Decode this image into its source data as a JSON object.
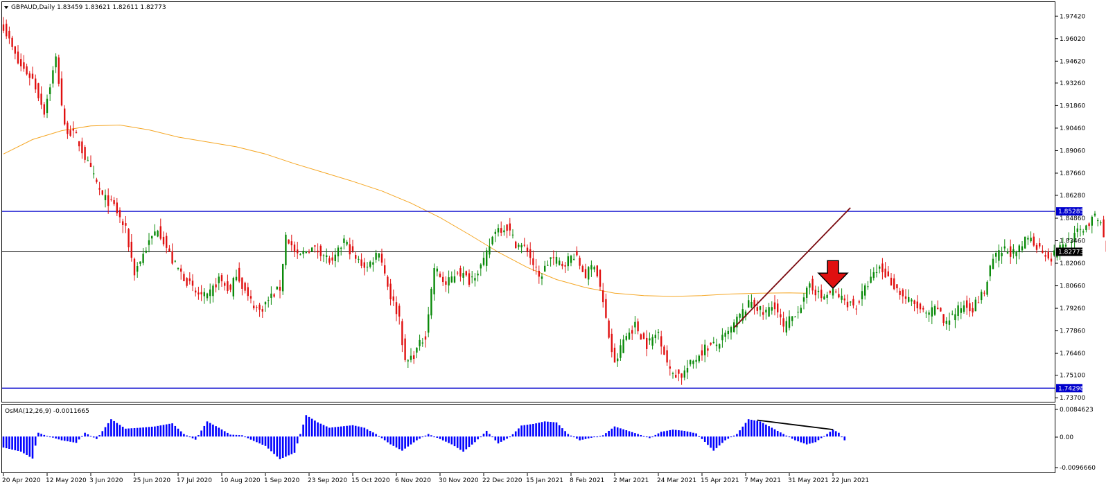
{
  "header": {
    "symbol_line": "GBPAUD,Daily  1.83459 1.83621 1.82611 1.82773"
  },
  "indicator": {
    "label": "OsMA(12,26,9) -0.0011665",
    "ticks": [
      "0.0084623",
      "0.00",
      "-0.0096660"
    ]
  },
  "colors": {
    "bull": "#0a8a0a",
    "bear": "#e01010",
    "ma": "#f5a623",
    "level": "#0000cc",
    "trend": "#7a0a10",
    "arrow": "#e01010",
    "osma": "#0000ff",
    "price_line": "#000000"
  },
  "chart_data": [
    {
      "type": "candlestick",
      "symbol": "GBPAUD",
      "timeframe": "Daily",
      "ohlc_last": {
        "open": 1.83459,
        "high": 1.83621,
        "low": 1.82611,
        "close": 1.82773
      },
      "y_ticks": [
        "1.97420",
        "1.96020",
        "1.94620",
        "1.93260",
        "1.91860",
        "1.90460",
        "1.89060",
        "1.87660",
        "1.86280",
        "1.84860",
        "1.83460",
        "1.82060",
        "1.80660",
        "1.79260",
        "1.77860",
        "1.76460",
        "1.75100",
        "1.73700"
      ],
      "ylim": [
        1.7345,
        1.9825
      ],
      "x_ticks": [
        "20 Apr 2020",
        "12 May 2020",
        "3 Jun 2020",
        "25 Jun 2020",
        "17 Jul 2020",
        "10 Aug 2020",
        "1 Sep 2020",
        "23 Sep 2020",
        "15 Oct 2020",
        "6 Nov 2020",
        "30 Nov 2020",
        "22 Dec 2020",
        "15 Jan 2021",
        "8 Feb 2021",
        "2 Mar 2021",
        "24 Mar 2021",
        "15 Apr 2021",
        "7 May 2021",
        "31 May 2021",
        "22 Jun 2021"
      ],
      "price_path": [
        [
          0,
          1.968
        ],
        [
          5,
          1.945
        ],
        [
          10,
          1.935
        ],
        [
          14,
          1.915
        ],
        [
          18,
          1.948
        ],
        [
          21,
          1.905
        ],
        [
          25,
          1.899
        ],
        [
          30,
          1.878
        ],
        [
          34,
          1.862
        ],
        [
          38,
          1.856
        ],
        [
          42,
          1.841
        ],
        [
          45,
          1.815
        ],
        [
          49,
          1.83
        ],
        [
          53,
          1.843
        ],
        [
          58,
          1.822
        ],
        [
          62,
          1.812
        ],
        [
          66,
          1.802
        ],
        [
          70,
          1.799
        ],
        [
          74,
          1.811
        ],
        [
          78,
          1.803
        ],
        [
          80,
          1.815
        ],
        [
          84,
          1.799
        ],
        [
          88,
          1.791
        ],
        [
          92,
          1.8
        ],
        [
          95,
          1.805
        ],
        [
          97,
          1.838
        ],
        [
          101,
          1.824
        ],
        [
          105,
          1.83
        ],
        [
          109,
          1.828
        ],
        [
          113,
          1.82
        ],
        [
          117,
          1.835
        ],
        [
          121,
          1.823
        ],
        [
          125,
          1.818
        ],
        [
          129,
          1.829
        ],
        [
          133,
          1.8
        ],
        [
          136,
          1.787
        ],
        [
          138,
          1.758
        ],
        [
          141,
          1.764
        ],
        [
          145,
          1.776
        ],
        [
          148,
          1.818
        ],
        [
          152,
          1.807
        ],
        [
          156,
          1.816
        ],
        [
          160,
          1.81
        ],
        [
          165,
          1.821
        ],
        [
          169,
          1.842
        ],
        [
          173,
          1.843
        ],
        [
          176,
          1.833
        ],
        [
          180,
          1.829
        ],
        [
          184,
          1.811
        ],
        [
          188,
          1.824
        ],
        [
          192,
          1.82
        ],
        [
          196,
          1.826
        ],
        [
          200,
          1.813
        ],
        [
          203,
          1.821
        ],
        [
          205,
          1.806
        ],
        [
          208,
          1.775
        ],
        [
          210,
          1.757
        ],
        [
          213,
          1.773
        ],
        [
          217,
          1.782
        ],
        [
          221,
          1.77
        ],
        [
          225,
          1.778
        ],
        [
          229,
          1.753
        ],
        [
          233,
          1.751
        ],
        [
          237,
          1.76
        ],
        [
          241,
          1.768
        ],
        [
          245,
          1.77
        ],
        [
          249,
          1.777
        ],
        [
          253,
          1.788
        ],
        [
          257,
          1.797
        ],
        [
          261,
          1.789
        ],
        [
          265,
          1.795
        ],
        [
          268,
          1.78
        ],
        [
          272,
          1.79
        ],
        [
          275,
          1.797
        ],
        [
          277,
          1.808
        ],
        [
          281,
          1.799
        ],
        [
          285,
          1.803
        ],
        [
          289,
          1.797
        ],
        [
          293,
          1.794
        ],
        [
          297,
          1.808
        ],
        [
          301,
          1.818
        ],
        [
          305,
          1.809
        ],
        [
          309,
          1.8
        ],
        [
          313,
          1.795
        ],
        [
          317,
          1.788
        ],
        [
          321,
          1.793
        ],
        [
          323,
          1.784
        ],
        [
          326,
          1.788
        ],
        [
          330,
          1.795
        ],
        [
          333,
          1.793
        ],
        [
          337,
          1.803
        ],
        [
          340,
          1.823
        ],
        [
          344,
          1.829
        ],
        [
          348,
          1.826
        ],
        [
          352,
          1.837
        ],
        [
          356,
          1.83
        ],
        [
          360,
          1.824
        ],
        [
          364,
          1.832
        ],
        [
          368,
          1.838
        ],
        [
          372,
          1.844
        ],
        [
          375,
          1.849
        ],
        [
          377,
          1.846
        ],
        [
          379,
          1.827
        ]
      ],
      "moving_average": [
        [
          0,
          1.8885
        ],
        [
          10,
          1.8975
        ],
        [
          20,
          1.903
        ],
        [
          30,
          1.906
        ],
        [
          40,
          1.9065
        ],
        [
          50,
          1.9035
        ],
        [
          60,
          1.899
        ],
        [
          70,
          1.896
        ],
        [
          80,
          1.893
        ],
        [
          90,
          1.8885
        ],
        [
          100,
          1.8825
        ],
        [
          110,
          1.877
        ],
        [
          120,
          1.8715
        ],
        [
          130,
          1.8655
        ],
        [
          140,
          1.858
        ],
        [
          150,
          1.849
        ],
        [
          160,
          1.8385
        ],
        [
          170,
          1.8275
        ],
        [
          180,
          1.818
        ],
        [
          190,
          1.8105
        ],
        [
          200,
          1.8055
        ],
        [
          210,
          1.802
        ],
        [
          220,
          1.8005
        ],
        [
          230,
          1.8
        ],
        [
          240,
          1.8005
        ],
        [
          250,
          1.8015
        ],
        [
          260,
          1.802
        ],
        [
          270,
          1.8022
        ],
        [
          276,
          1.802
        ]
      ],
      "levels": [
        {
          "label": "1.85285",
          "value": 1.85285,
          "color": "#0000cc"
        },
        {
          "label": "1.82773",
          "value": 1.82773,
          "color": "#000000"
        },
        {
          "label": "1.74298",
          "value": 1.74298,
          "color": "#0000cc"
        }
      ],
      "trendline": [
        [
          251,
          1.7805
        ],
        [
          291,
          1.8551
        ]
      ],
      "arrow": {
        "at_bar": 285,
        "value": 1.8145,
        "direction": "down"
      }
    },
    {
      "type": "bar",
      "name": "OsMA(12,26,9)",
      "value_last": -0.0011665,
      "ylim": [
        -0.0112,
        0.0095
      ],
      "y_ticks": [
        "0.0084623",
        "0.00",
        "-0.0096660"
      ],
      "path": [
        [
          0,
          -0.0035
        ],
        [
          6,
          -0.0048
        ],
        [
          10,
          -0.007
        ],
        [
          12,
          0.0012
        ],
        [
          14,
          0.0005
        ],
        [
          20,
          -0.0012
        ],
        [
          25,
          -0.002
        ],
        [
          28,
          0.0012
        ],
        [
          32,
          -0.0008
        ],
        [
          37,
          0.0055
        ],
        [
          42,
          0.0025
        ],
        [
          47,
          0.0028
        ],
        [
          52,
          0.0032
        ],
        [
          58,
          0.0042
        ],
        [
          62,
          0.0008
        ],
        [
          66,
          -0.001
        ],
        [
          70,
          0.0048
        ],
        [
          74,
          0.0028
        ],
        [
          78,
          0.0006
        ],
        [
          82,
          0.0004
        ],
        [
          85,
          -0.001
        ],
        [
          90,
          -0.003
        ],
        [
          95,
          -0.0072
        ],
        [
          100,
          -0.0052
        ],
        [
          104,
          0.0068
        ],
        [
          108,
          0.0045
        ],
        [
          112,
          0.0028
        ],
        [
          116,
          0.0032
        ],
        [
          120,
          0.0036
        ],
        [
          124,
          0.0028
        ],
        [
          128,
          0.0008
        ],
        [
          133,
          -0.0025
        ],
        [
          137,
          -0.0045
        ],
        [
          142,
          -0.0012
        ],
        [
          146,
          0.0008
        ],
        [
          150,
          -0.0008
        ],
        [
          154,
          -0.0025
        ],
        [
          158,
          -0.0048
        ],
        [
          162,
          -0.0018
        ],
        [
          166,
          0.0018
        ],
        [
          170,
          -0.0022
        ],
        [
          174,
          -0.0002
        ],
        [
          178,
          0.0035
        ],
        [
          182,
          0.004
        ],
        [
          186,
          0.0048
        ],
        [
          190,
          0.0045
        ],
        [
          194,
          0.0008
        ],
        [
          198,
          -0.0012
        ],
        [
          202,
          -0.0004
        ],
        [
          206,
          0.0004
        ],
        [
          210,
          0.0032
        ],
        [
          214,
          0.002
        ],
        [
          218,
          0.0008
        ],
        [
          222,
          -0.0005
        ],
        [
          226,
          0.0015
        ],
        [
          230,
          0.0022
        ],
        [
          234,
          0.0018
        ],
        [
          238,
          0.001
        ],
        [
          240,
          -0.0008
        ],
        [
          244,
          -0.0045
        ],
        [
          248,
          -0.0012
        ],
        [
          252,
          0.0008
        ],
        [
          256,
          0.0055
        ],
        [
          260,
          0.0048
        ],
        [
          264,
          0.0028
        ],
        [
          268,
          0.0008
        ],
        [
          272,
          -0.0012
        ],
        [
          276,
          -0.0025
        ],
        [
          279,
          -0.0018
        ],
        [
          283,
          0.0008
        ],
        [
          285,
          0.0022
        ],
        [
          287,
          0.0012
        ],
        [
          289,
          -0.0012
        ]
      ],
      "divergence_line": [
        [
          259,
          0.0052
        ],
        [
          285,
          0.0022
        ]
      ]
    }
  ]
}
